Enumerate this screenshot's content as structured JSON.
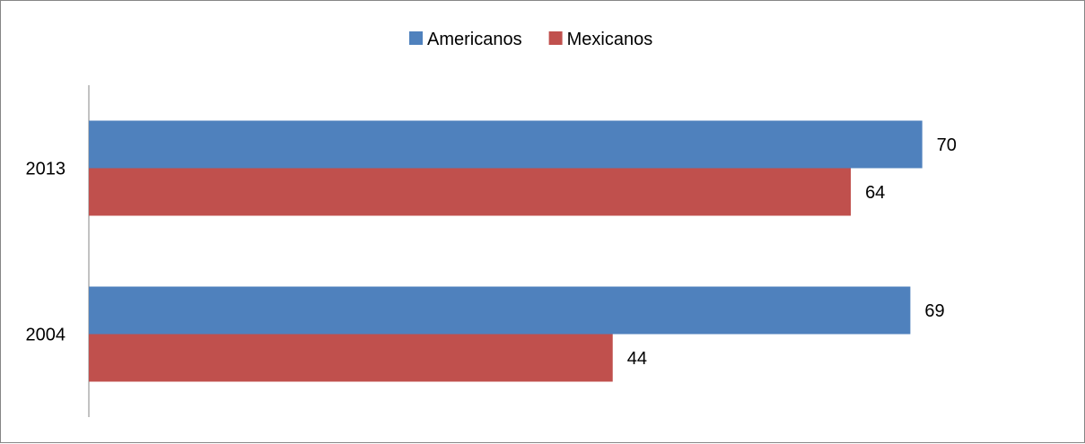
{
  "chart_data": {
    "type": "bar",
    "orientation": "horizontal",
    "title": "",
    "xlabel": "",
    "ylabel": "",
    "categories": [
      "2013",
      "2004"
    ],
    "series": [
      {
        "name": "Americanos",
        "color": "#4F81BD",
        "values": [
          70,
          69
        ]
      },
      {
        "name": "Mexicanos",
        "color": "#C0504D",
        "values": [
          64,
          44
        ]
      }
    ],
    "xlim": [
      0,
      75
    ],
    "grid": false,
    "legend_position": "top",
    "data_labels": true
  }
}
